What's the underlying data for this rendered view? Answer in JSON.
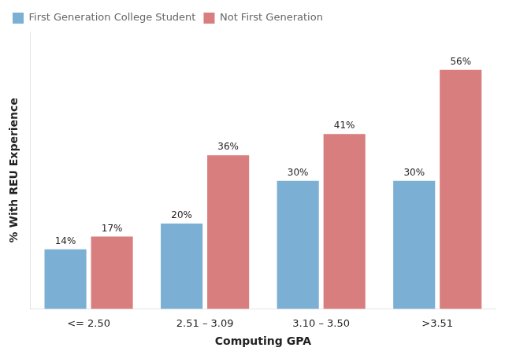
{
  "chart_data": {
    "type": "bar",
    "categories": [
      "<= 2.50",
      "2.51 – 3.09",
      "3.10 – 3.50",
      ">3.51"
    ],
    "series": [
      {
        "name": "First Generation College Student",
        "color": "#7bafd4",
        "values": [
          14,
          20,
          30,
          30
        ],
        "value_labels": [
          "14%",
          "20%",
          "30%",
          "30%"
        ]
      },
      {
        "name": "Not First Generation",
        "color": "#d97e7e",
        "values": [
          17,
          36,
          41,
          56
        ],
        "value_labels": [
          "17%",
          "36%",
          "41%",
          "56%"
        ]
      }
    ],
    "xlabel": "Computing GPA",
    "ylabel": "% With REU Experience",
    "ylim": [
      0,
      65
    ],
    "grid": false,
    "legend": "upper left",
    "data_labels": true,
    "tick_labels": "x"
  }
}
